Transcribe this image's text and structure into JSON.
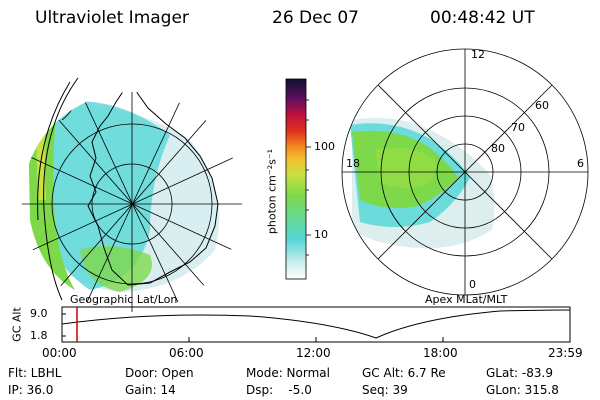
{
  "header": {
    "instrument": "Ultraviolet Imager",
    "date": "26 Dec 07",
    "time": "00:48:42 UT"
  },
  "left_panel": {
    "label": "Geographic Lat/Lon"
  },
  "right_panel": {
    "label": "Apex MLat/MLT",
    "mlt_labels": [
      "12",
      "18",
      "6",
      "0"
    ],
    "lat_labels": [
      "60",
      "70",
      "80"
    ]
  },
  "colorbar": {
    "unit_label": "photon cm⁻²s⁻¹",
    "ticks": [
      "100",
      "10"
    ]
  },
  "altitude_plot": {
    "ylabel": "GC Alt",
    "y_ticks": [
      "9.0",
      "1.8"
    ],
    "x_ticks": [
      "00:00",
      "06:00",
      "12:00",
      "18:00",
      "23:59"
    ]
  },
  "info": {
    "flt": "Flt: LBHL",
    "ip": "IP: 36.0",
    "door": "Door: Open",
    "gain": "Gain: 14",
    "mode": "Mode: Normal",
    "dsp": "Dsp:    -5.0",
    "gc_alt": "GC Alt: 6.7 Re",
    "seq": "Seq: 39",
    "glat": "GLat: -83.9",
    "glon": "GLon: 315.8"
  },
  "colors": {
    "marker": "#cc0000",
    "aurora_green": "#7ed94a",
    "aurora_cyan": "#5ed8d8"
  }
}
